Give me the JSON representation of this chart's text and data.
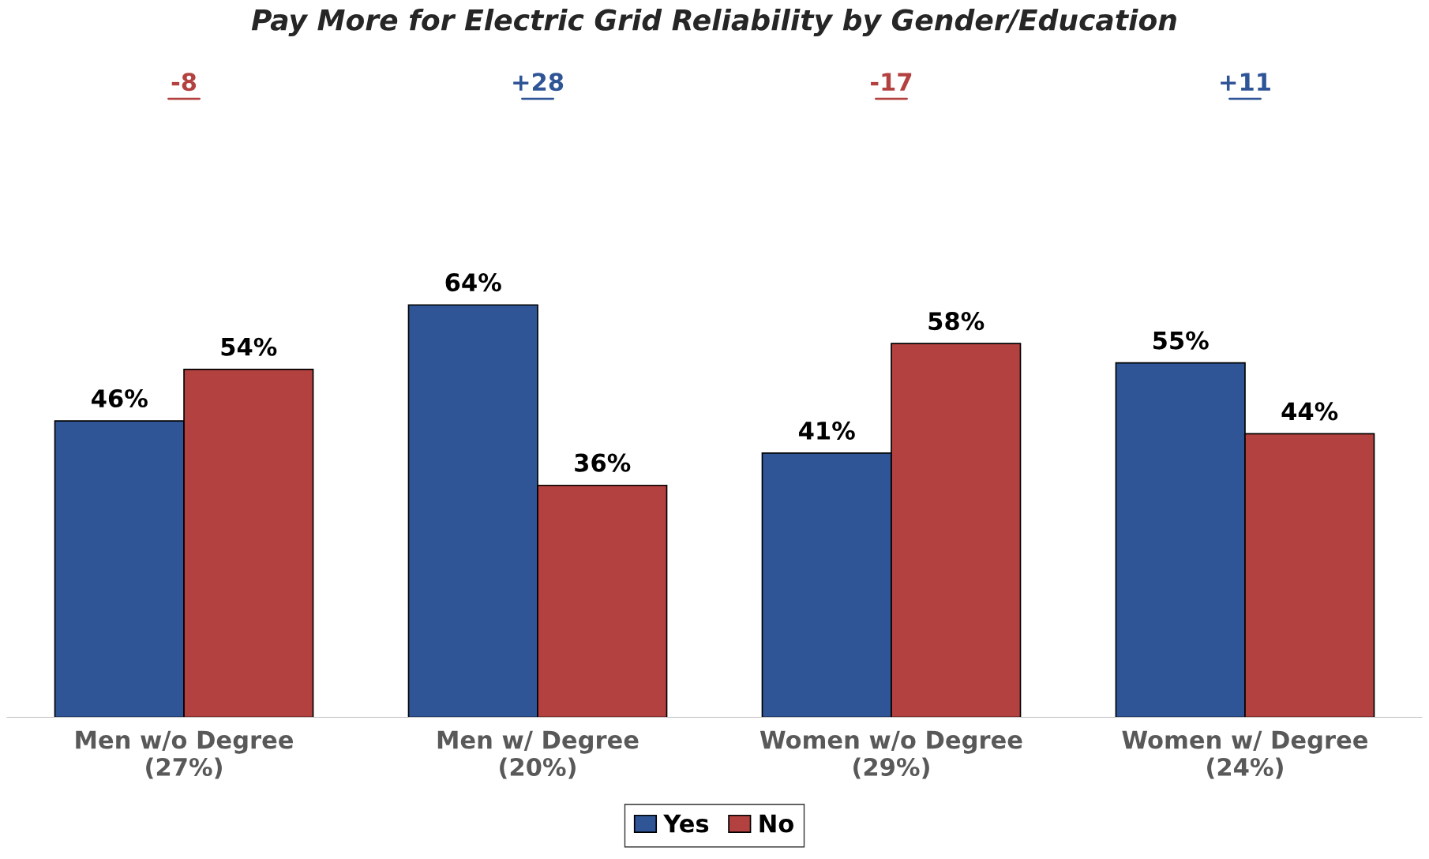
{
  "chart_data": {
    "type": "bar",
    "title": "Pay More for Electric Grid Reliability by Gender/Education",
    "categories": [
      "Men w/o Degree\n(27%)",
      "Men w/ Degree\n(20%)",
      "Women w/o Degree\n(29%)",
      "Women w/ Degree\n(24%)"
    ],
    "series": [
      {
        "name": "Yes",
        "color": "#2f5597",
        "values": [
          46,
          64,
          41,
          55
        ],
        "value_labels": [
          "46%",
          "64%",
          "41%",
          "55%"
        ]
      },
      {
        "name": "No",
        "color": "#b3413f",
        "values": [
          54,
          36,
          58,
          44
        ],
        "value_labels": [
          "54%",
          "36%",
          "58%",
          "44%"
        ]
      }
    ],
    "annotations": [
      "-8",
      "+28",
      "-17",
      "+11"
    ],
    "legend": "bottom",
    "grid": false
  }
}
